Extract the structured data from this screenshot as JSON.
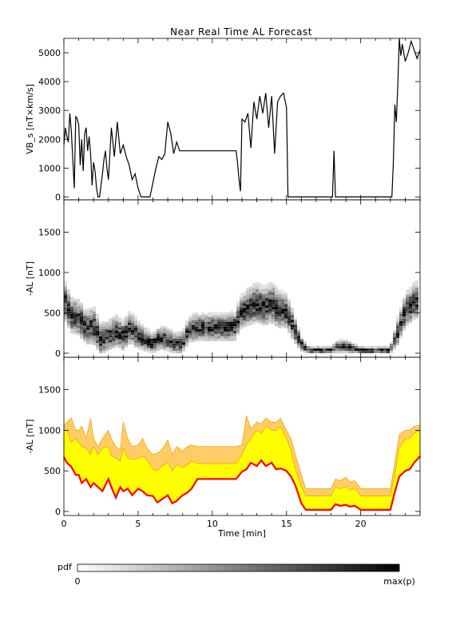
{
  "title": "Near Real Time AL Forecast",
  "chart_data": [
    {
      "type": "line",
      "ylabel": "VB_s [nT×km/s]",
      "ylim": [
        -100,
        5500
      ],
      "xlim": [
        0,
        24
      ],
      "yticks": [
        0,
        1000,
        2000,
        3000,
        4000,
        5000
      ],
      "x": [
        0,
        0.1,
        0.2,
        0.3,
        0.4,
        0.5,
        0.6,
        0.7,
        0.8,
        0.9,
        1.0,
        1.1,
        1.2,
        1.3,
        1.4,
        1.5,
        1.6,
        1.7,
        1.8,
        1.9,
        2.0,
        2.1,
        2.2,
        2.3,
        2.4,
        2.5,
        2.6,
        2.7,
        2.8,
        2.9,
        3.0,
        3.2,
        3.4,
        3.6,
        3.8,
        4.0,
        4.2,
        4.4,
        4.6,
        4.8,
        5.0,
        5.2,
        5.4,
        5.6,
        5.8,
        6.0,
        6.2,
        6.4,
        6.6,
        6.8,
        7.0,
        7.2,
        7.4,
        7.6,
        7.8,
        8.0,
        8.2,
        8.4,
        8.6,
        8.8,
        9.0,
        11.6,
        11.7,
        11.8,
        11.9,
        12.0,
        12.2,
        12.4,
        12.6,
        12.8,
        13.0,
        13.2,
        13.4,
        13.6,
        13.8,
        14.0,
        14.2,
        14.4,
        14.6,
        14.8,
        15.0,
        15.1,
        18.0,
        18.1,
        18.2,
        18.3,
        22.0,
        22.1,
        22.2,
        22.3,
        22.4,
        22.5,
        22.6,
        22.7,
        22.8,
        23.0,
        23.2,
        23.4,
        23.6,
        23.8,
        24.0
      ],
      "y": [
        1800,
        2400,
        2100,
        1900,
        2900,
        2300,
        1300,
        300,
        2800,
        2700,
        2500,
        1100,
        2000,
        900,
        2200,
        2400,
        1600,
        2100,
        1500,
        400,
        1200,
        900,
        300,
        0,
        0,
        400,
        800,
        1300,
        1600,
        1000,
        600,
        2400,
        1400,
        2600,
        1500,
        1800,
        1400,
        1100,
        600,
        800,
        300,
        0,
        0,
        0,
        0,
        500,
        1000,
        1400,
        1300,
        1500,
        2600,
        2200,
        1500,
        1900,
        1600,
        1600,
        1600,
        1600,
        1600,
        1600,
        1600,
        1600,
        1200,
        600,
        200,
        2700,
        2600,
        2900,
        1700,
        3300,
        2700,
        3500,
        2900,
        3600,
        2400,
        3500,
        1500,
        3300,
        3500,
        3600,
        3100,
        0,
        0,
        0,
        1600,
        0,
        0,
        0,
        1200,
        3200,
        2600,
        3900,
        5500,
        4900,
        5300,
        4700,
        5000,
        5400,
        5100,
        4800,
        5100
      ]
    },
    {
      "type": "heatmap",
      "ylabel": "-AL [nT]",
      "ylim": [
        -50,
        1900
      ],
      "xlim": [
        0,
        24
      ],
      "yticks": [
        0,
        500,
        1000,
        1500
      ],
      "colorbar": {
        "label": "pdf",
        "min_label": "0",
        "max_label": "max(p)"
      },
      "median_x": [
        0,
        0.5,
        1.0,
        1.5,
        2.0,
        2.5,
        3.0,
        3.5,
        4.0,
        4.5,
        5.0,
        5.5,
        6.0,
        6.5,
        7.0,
        7.5,
        8.0,
        8.5,
        9.0,
        10.0,
        11.0,
        11.5,
        12.0,
        12.5,
        13.0,
        13.5,
        14.0,
        14.5,
        15.0,
        15.5,
        16.0,
        16.5,
        17.0,
        18.0,
        18.5,
        19.0,
        20.0,
        21.0,
        22.0,
        22.5,
        23.0,
        23.5,
        24.0
      ],
      "median_y": [
        650,
        450,
        420,
        300,
        320,
        150,
        200,
        250,
        200,
        300,
        200,
        150,
        100,
        180,
        150,
        100,
        120,
        280,
        300,
        300,
        300,
        310,
        500,
        550,
        600,
        550,
        600,
        520,
        500,
        300,
        100,
        20,
        20,
        20,
        70,
        70,
        20,
        20,
        20,
        250,
        500,
        600,
        650
      ],
      "spread": [
        450,
        400,
        400,
        380,
        420,
        350,
        330,
        350,
        330,
        350,
        300,
        260,
        220,
        260,
        260,
        220,
        250,
        300,
        300,
        300,
        300,
        320,
        380,
        420,
        450,
        420,
        450,
        420,
        380,
        330,
        150,
        80,
        80,
        80,
        140,
        140,
        80,
        80,
        80,
        300,
        380,
        400,
        420
      ]
    },
    {
      "type": "area",
      "ylabel": "-AL [nT]",
      "xlabel": "Time [min]",
      "ylim": [
        -50,
        1900
      ],
      "xlim": [
        0,
        24
      ],
      "yticks": [
        0,
        500,
        1000,
        1500
      ],
      "xticks": [
        0,
        5,
        10,
        15,
        20
      ],
      "series": [
        {
          "color": "#ff0000",
          "x": [
            0,
            0.2,
            0.5,
            0.8,
            1.0,
            1.2,
            1.5,
            1.8,
            2.0,
            2.3,
            2.6,
            3.0,
            3.2,
            3.5,
            3.8,
            4.0,
            4.3,
            4.6,
            5.0,
            5.3,
            5.6,
            6.0,
            6.3,
            6.6,
            7.0,
            7.3,
            7.6,
            8.0,
            8.3,
            8.6,
            9.0,
            11.6,
            12.0,
            12.3,
            12.6,
            13.0,
            13.3,
            13.6,
            14.0,
            14.3,
            14.6,
            15.0,
            15.3,
            15.6,
            16.0,
            16.3,
            18.0,
            18.3,
            18.6,
            19.0,
            19.3,
            19.6,
            20.0,
            22.0,
            22.3,
            22.6,
            23.0,
            23.3,
            23.6,
            24.0
          ],
          "y": [
            670,
            600,
            550,
            450,
            450,
            350,
            400,
            300,
            350,
            300,
            250,
            400,
            300,
            170,
            300,
            250,
            280,
            200,
            280,
            250,
            200,
            190,
            110,
            150,
            200,
            100,
            130,
            200,
            230,
            280,
            400,
            400,
            490,
            520,
            600,
            560,
            630,
            560,
            600,
            520,
            530,
            500,
            430,
            320,
            100,
            20,
            20,
            90,
            70,
            80,
            60,
            70,
            20,
            20,
            240,
            430,
            500,
            520,
            600,
            680
          ]
        }
      ],
      "bands": [
        {
          "color": "#ffff00",
          "upper": [
            1000,
            1000,
            850,
            900,
            850,
            800,
            780,
            700,
            800,
            700,
            780,
            800,
            680,
            660,
            620,
            780,
            660,
            640,
            650,
            680,
            640,
            520,
            500,
            560,
            600,
            500,
            580,
            540,
            570,
            620,
            590,
            590,
            700,
            820,
            900,
            1000,
            960,
            1050,
            1000,
            1000,
            1040,
            900,
            760,
            520,
            300,
            190,
            190,
            300,
            280,
            300,
            260,
            290,
            190,
            190,
            450,
            780,
            890,
            900,
            960,
            1000
          ]
        },
        {
          "color": "#ffcc66",
          "upper": [
            1060,
            1100,
            1150,
            1000,
            1000,
            1050,
            900,
            1150,
            900,
            800,
            900,
            1000,
            900,
            800,
            760,
            1100,
            900,
            800,
            820,
            900,
            780,
            700,
            720,
            760,
            880,
            700,
            800,
            740,
            800,
            820,
            800,
            800,
            820,
            1180,
            1020,
            1100,
            1080,
            1150,
            1100,
            1100,
            1150,
            1000,
            900,
            700,
            450,
            280,
            280,
            400,
            380,
            420,
            360,
            380,
            280,
            280,
            600,
            950,
            1000,
            1000,
            1050,
            1060
          ]
        }
      ]
    }
  ]
}
